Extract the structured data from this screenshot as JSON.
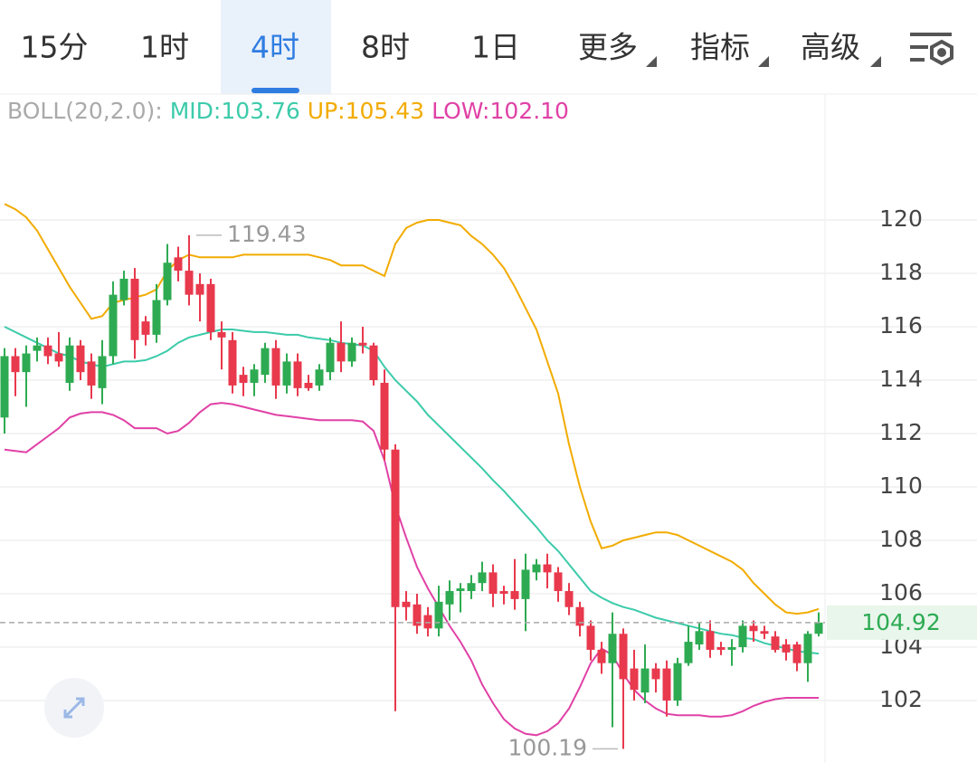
{
  "tabs": [
    "15分",
    "1时",
    "4时",
    "8时",
    "1日",
    "更多",
    "指标",
    "高级"
  ],
  "selected_tab_index": 2,
  "chart_data": {
    "type": "candlestick",
    "indicator_label": "BOLL(20,2.0):",
    "up_color": "#2eab52",
    "down_color": "#e8394d",
    "open": [
      112.6,
      114.9,
      114.3,
      115.1,
      115.3,
      115.0,
      113.9,
      115.3,
      114.7,
      113.7,
      114.9,
      117.0,
      117.8,
      116.2,
      115.7,
      117.0,
      118.6,
      118.1,
      117.6,
      117.6,
      115.8,
      115.5,
      114.2,
      113.9,
      114.2,
      115.2,
      113.8,
      114.7,
      113.9,
      113.8,
      114.3,
      115.4,
      114.7,
      115.4,
      115.3,
      113.9,
      111.4,
      105.7,
      105.6,
      105.2,
      104.7,
      105.6,
      106.1,
      106.1,
      106.4,
      106.8,
      106.1,
      106.1,
      105.8,
      106.8,
      107.1,
      106.8,
      106.1,
      105.5,
      104.8,
      103.9,
      103.4,
      104.5,
      103.2,
      102.3,
      103.2,
      103.2,
      102.0,
      103.4,
      104.1,
      104.6,
      104.0,
      103.9,
      104.0,
      104.8,
      104.6,
      104.4,
      104.1,
      104.1,
      103.4,
      104.5
    ],
    "high": [
      115.2,
      115.2,
      115.3,
      115.6,
      115.6,
      115.8,
      115.6,
      115.5,
      115.0,
      115.5,
      117.7,
      118.1,
      118.2,
      116.4,
      117.6,
      119.1,
      119.0,
      119.43,
      118.0,
      117.8,
      116.2,
      115.8,
      114.5,
      114.6,
      115.4,
      115.5,
      115.0,
      115.0,
      114.2,
      114.6,
      115.6,
      116.2,
      115.6,
      116.0,
      115.4,
      114.4,
      111.6,
      106.1,
      106.0,
      105.5,
      106.3,
      106.5,
      106.4,
      106.7,
      107.2,
      107.1,
      106.3,
      107.3,
      107.5,
      107.3,
      107.5,
      107.0,
      106.4,
      105.7,
      105.0,
      104.2,
      105.3,
      104.7,
      103.9,
      104.1,
      103.4,
      103.5,
      103.6,
      104.8,
      104.9,
      105.0,
      104.2,
      104.3,
      105.0,
      105.0,
      104.8,
      104.6,
      104.3,
      104.2,
      104.6,
      105.3
    ],
    "low": [
      112.0,
      113.4,
      113.0,
      114.7,
      114.6,
      114.5,
      113.6,
      114.0,
      113.3,
      113.1,
      114.6,
      116.8,
      114.8,
      115.3,
      115.4,
      116.8,
      117.7,
      116.8,
      116.2,
      115.5,
      114.4,
      113.5,
      113.4,
      113.4,
      113.9,
      113.3,
      113.5,
      113.4,
      113.6,
      113.6,
      114.0,
      114.3,
      114.5,
      115.0,
      113.8,
      111.0,
      101.6,
      105.0,
      104.5,
      104.4,
      104.4,
      105.0,
      105.3,
      105.8,
      106.1,
      105.5,
      105.6,
      105.4,
      104.6,
      106.5,
      106.2,
      105.7,
      105.2,
      104.4,
      103.5,
      103.0,
      101.0,
      100.19,
      102.0,
      101.9,
      102.3,
      101.4,
      101.8,
      103.3,
      103.9,
      103.6,
      103.7,
      103.3,
      103.8,
      104.2,
      104.3,
      103.8,
      103.5,
      103.1,
      102.7,
      104.4
    ],
    "close": [
      114.9,
      114.3,
      115.0,
      115.3,
      114.9,
      114.7,
      115.3,
      114.3,
      113.8,
      114.9,
      117.2,
      117.8,
      115.5,
      115.7,
      117.0,
      118.4,
      118.1,
      117.2,
      117.2,
      115.8,
      115.6,
      113.8,
      113.9,
      114.4,
      115.2,
      113.8,
      114.7,
      113.7,
      113.7,
      114.4,
      115.4,
      114.7,
      115.4,
      115.3,
      114.0,
      111.4,
      105.5,
      105.5,
      104.8,
      104.7,
      105.7,
      106.1,
      106.2,
      106.4,
      106.8,
      106.0,
      106.0,
      105.8,
      106.9,
      107.1,
      106.8,
      106.1,
      105.5,
      104.8,
      103.9,
      103.4,
      104.5,
      102.8,
      102.4,
      103.2,
      102.8,
      102.0,
      103.4,
      104.2,
      104.6,
      103.9,
      103.9,
      104.0,
      104.8,
      104.6,
      104.5,
      103.9,
      103.8,
      103.4,
      104.5,
      104.92
    ],
    "series": [
      {
        "name": "MID:103.76",
        "color": "#3ccbaa",
        "values": [
          116.0,
          115.8,
          115.6,
          115.4,
          115.2,
          115.0,
          114.9,
          114.7,
          114.6,
          114.5,
          114.6,
          114.7,
          114.7,
          114.75,
          114.9,
          115.1,
          115.4,
          115.6,
          115.7,
          115.8,
          115.9,
          115.9,
          115.85,
          115.8,
          115.8,
          115.75,
          115.7,
          115.7,
          115.6,
          115.55,
          115.5,
          115.4,
          115.35,
          115.3,
          115.1,
          114.5,
          114.0,
          113.6,
          113.2,
          112.7,
          112.3,
          111.9,
          111.5,
          111.1,
          110.7,
          110.25,
          109.85,
          109.4,
          108.95,
          108.5,
          108.0,
          107.6,
          107.1,
          106.6,
          106.1,
          105.85,
          105.65,
          105.5,
          105.4,
          105.25,
          105.1,
          105.0,
          104.9,
          104.8,
          104.7,
          104.6,
          104.5,
          104.45,
          104.35,
          104.3,
          104.15,
          104.05,
          103.95,
          103.85,
          103.8,
          103.76
        ]
      },
      {
        "name": "UP:105.43",
        "color": "#f2ab00",
        "values": [
          120.6,
          120.4,
          120.1,
          119.6,
          118.9,
          118.2,
          117.5,
          116.9,
          116.3,
          116.4,
          116.9,
          117.0,
          117.1,
          117.2,
          117.4,
          118.1,
          118.5,
          118.7,
          118.6,
          118.6,
          118.6,
          118.6,
          118.7,
          118.7,
          118.7,
          118.7,
          118.7,
          118.7,
          118.7,
          118.6,
          118.5,
          118.3,
          118.3,
          118.3,
          118.1,
          117.9,
          119.1,
          119.7,
          119.9,
          120.0,
          120.0,
          119.9,
          119.8,
          119.4,
          119.1,
          118.7,
          118.2,
          117.5,
          116.7,
          115.9,
          114.7,
          113.5,
          111.6,
          110.0,
          108.7,
          107.7,
          107.8,
          108.0,
          108.1,
          108.2,
          108.3,
          108.3,
          108.2,
          108.0,
          107.8,
          107.6,
          107.4,
          107.2,
          106.9,
          106.4,
          106.0,
          105.6,
          105.3,
          105.25,
          105.3,
          105.43
        ]
      },
      {
        "name": "LOW:102.10",
        "color": "#e041a6",
        "values": [
          111.4,
          111.35,
          111.3,
          111.6,
          111.9,
          112.2,
          112.6,
          112.75,
          112.8,
          112.8,
          112.7,
          112.5,
          112.2,
          112.2,
          112.2,
          112.0,
          112.1,
          112.4,
          112.8,
          113.1,
          113.15,
          113.1,
          113.0,
          112.9,
          112.8,
          112.7,
          112.65,
          112.6,
          112.55,
          112.5,
          112.5,
          112.5,
          112.5,
          112.45,
          112.1,
          111.0,
          109.3,
          108.1,
          107.0,
          106.2,
          105.5,
          104.8,
          104.2,
          103.5,
          102.6,
          101.9,
          101.3,
          100.95,
          100.75,
          100.7,
          100.85,
          101.15,
          101.7,
          102.5,
          103.4,
          103.95,
          103.7,
          103.0,
          102.4,
          102.0,
          101.7,
          101.5,
          101.45,
          101.45,
          101.45,
          101.4,
          101.4,
          101.45,
          101.6,
          101.8,
          101.95,
          102.05,
          102.1,
          102.1,
          102.1,
          102.1
        ]
      }
    ],
    "high_label": 119.43,
    "low_label": 100.19,
    "last_price": 104.92,
    "ylim": [
      99.66,
      124.68
    ],
    "yticks": [
      102,
      104,
      106,
      108,
      110,
      112,
      114,
      116,
      118,
      120
    ],
    "grid": true
  }
}
